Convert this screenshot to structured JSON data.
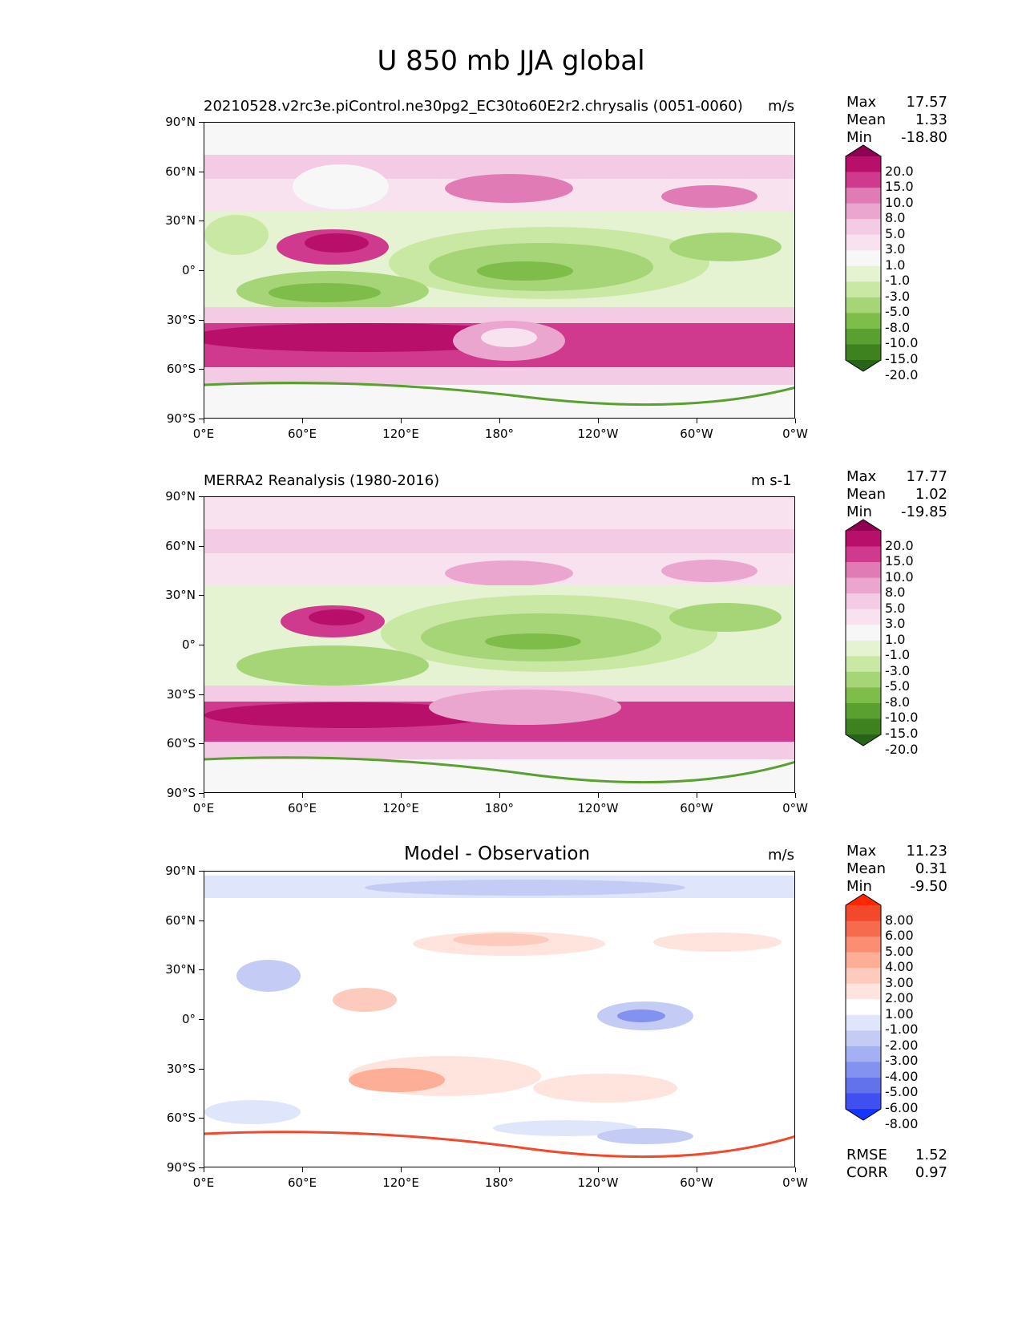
{
  "title": "U 850 mb JJA global",
  "lat_ticks": [
    "90°N",
    "60°N",
    "30°N",
    "0°",
    "30°S",
    "60°S",
    "90°S"
  ],
  "lon_ticks": [
    "0°E",
    "60°E",
    "120°E",
    "180°",
    "120°W",
    "60°W",
    "0°W"
  ],
  "panels": [
    {
      "title": "20210528.v2rc3e.piControl.ne30pg2_EC30to60E2r2.chrysalis (0051-0060)",
      "units": "m/s",
      "stats": {
        "max_label": "Max",
        "max": "17.57",
        "mean_label": "Mean",
        "mean": "1.33",
        "min_label": "Min",
        "min": "-18.80"
      },
      "colorbar": {
        "labels": [
          "20.0",
          "15.0",
          "10.0",
          "8.0",
          "5.0",
          "3.0",
          "1.0",
          "-1.0",
          "-3.0",
          "-5.0",
          "-8.0",
          "-10.0",
          "-15.0",
          "-20.0"
        ],
        "colors": [
          "#8e0152",
          "#b8106a",
          "#d03a8e",
          "#e07bb5",
          "#eaa6cf",
          "#f3cbe4",
          "#f8e2ef",
          "#f7f7f7",
          "#e6f3d3",
          "#c8e8a4",
          "#a6d578",
          "#7fbd4a",
          "#5aa030",
          "#3d821f",
          "#276419"
        ]
      }
    },
    {
      "title": "MERRA2 Reanalysis (1980-2016)",
      "units": "m s-1",
      "stats": {
        "max_label": "Max",
        "max": "17.77",
        "mean_label": "Mean",
        "mean": "1.02",
        "min_label": "Min",
        "min": "-19.85"
      },
      "colorbar": {
        "labels": [
          "20.0",
          "15.0",
          "10.0",
          "8.0",
          "5.0",
          "3.0",
          "1.0",
          "-1.0",
          "-3.0",
          "-5.0",
          "-8.0",
          "-10.0",
          "-15.0",
          "-20.0"
        ],
        "colors": [
          "#8e0152",
          "#b8106a",
          "#d03a8e",
          "#e07bb5",
          "#eaa6cf",
          "#f3cbe4",
          "#f8e2ef",
          "#f7f7f7",
          "#e6f3d3",
          "#c8e8a4",
          "#a6d578",
          "#7fbd4a",
          "#5aa030",
          "#3d821f",
          "#276419"
        ]
      }
    },
    {
      "title": "Model - Observation",
      "units": "m/s",
      "stats": {
        "max_label": "Max",
        "max": "11.23",
        "mean_label": "Mean",
        "mean": "0.31",
        "min_label": "Min",
        "min": "-9.50"
      },
      "extra_stats": {
        "rmse_label": "RMSE",
        "rmse": "1.52",
        "corr_label": "CORR",
        "corr": "0.97"
      },
      "colorbar": {
        "labels": [
          "8.00",
          "6.00",
          "5.00",
          "4.00",
          "3.00",
          "2.00",
          "1.00",
          "-1.00",
          "-2.00",
          "-3.00",
          "-4.00",
          "-5.00",
          "-6.00",
          "-8.00"
        ],
        "colors": [
          "#ff2600",
          "#f2482c",
          "#f66a4e",
          "#fa8d72",
          "#fdae97",
          "#fdcbbd",
          "#fee4dc",
          "#ffffff",
          "#dfe5fb",
          "#c4ccf6",
          "#a4b0f2",
          "#8492ef",
          "#6271ec",
          "#3f4ff0",
          "#1435ff"
        ]
      }
    }
  ]
}
